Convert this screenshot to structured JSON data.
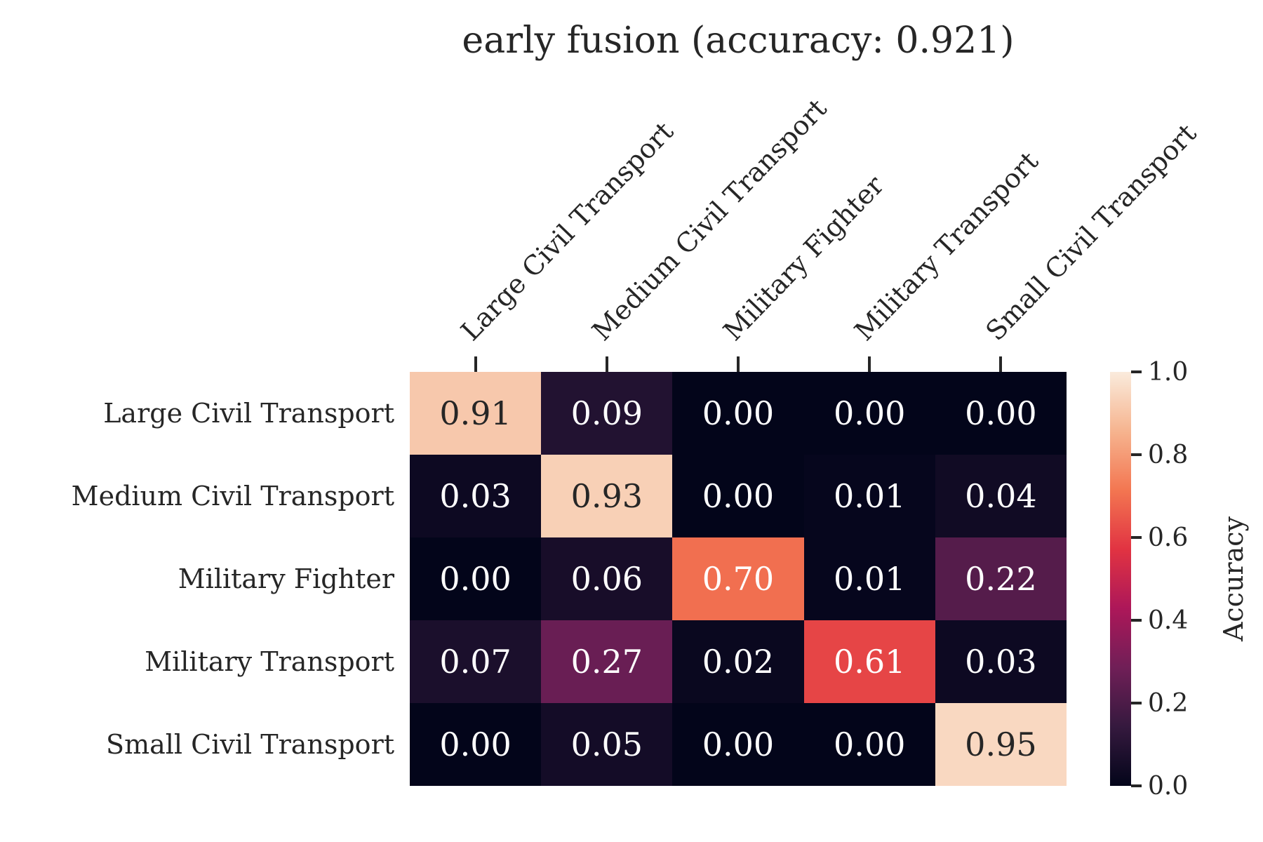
{
  "page": {
    "background": "#FFFFFF",
    "text_color": "#262626"
  },
  "chart_data": {
    "type": "heatmap",
    "title": "early fusion (accuracy: 0.921)",
    "accuracy_in_title": 0.921,
    "x_categories": [
      "Large Civil Transport",
      "Medium Civil Transport",
      "Military Fighter",
      "Military Transport",
      "Small Civil Transport"
    ],
    "y_categories": [
      "Large Civil Transport",
      "Medium Civil Transport",
      "Military Fighter",
      "Military Transport",
      "Small Civil Transport"
    ],
    "matrix": [
      [
        0.91,
        0.09,
        0.0,
        0.0,
        0.0
      ],
      [
        0.03,
        0.93,
        0.0,
        0.01,
        0.04
      ],
      [
        0.0,
        0.06,
        0.7,
        0.01,
        0.22
      ],
      [
        0.07,
        0.27,
        0.02,
        0.61,
        0.03
      ],
      [
        0.0,
        0.05,
        0.0,
        0.0,
        0.95
      ]
    ],
    "value_decimals": 2,
    "value_range": [
      0,
      1
    ],
    "grid": false,
    "colorbar": {
      "label": "Accuracy",
      "position": "right",
      "ticks": [
        1.0,
        0.8,
        0.6,
        0.4,
        0.2,
        0.0
      ],
      "tick_decimals": 1,
      "min": 0.0,
      "max": 1.0
    },
    "colormap": {
      "name": "rocket",
      "stops": [
        {
          "t": 0.0,
          "color": "#03051A"
        },
        {
          "t": 0.143,
          "color": "#35193E"
        },
        {
          "t": 0.286,
          "color": "#701F57"
        },
        {
          "t": 0.429,
          "color": "#AD1759"
        },
        {
          "t": 0.571,
          "color": "#E13342"
        },
        {
          "t": 0.714,
          "color": "#F37651"
        },
        {
          "t": 0.857,
          "color": "#F6B48F"
        },
        {
          "t": 1.0,
          "color": "#FAEBDC"
        }
      ]
    },
    "annotation_colors": {
      "on_dark_cell": "#FFFFFF",
      "on_light_cell": "#262626"
    }
  }
}
